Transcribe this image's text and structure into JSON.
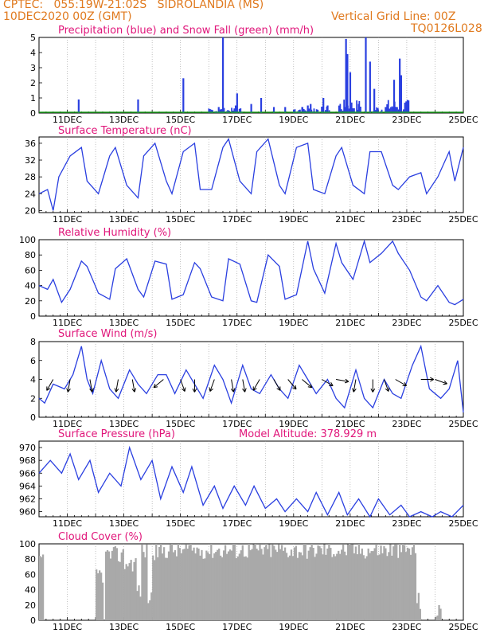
{
  "header": {
    "line1": "CPTEC:   055:19W-21:02S   SIDROLANDIA (MS)",
    "line2": "10DEC2020 00Z (GMT)",
    "grid_note": "Vertical Grid Line: 00Z",
    "code": "TQ0126L028"
  },
  "x_tick_labels": [
    "11DEC",
    "13DEC",
    "15DEC",
    "17DEC",
    "19DEC",
    "21DEC",
    "23DEC",
    "25DEC"
  ],
  "chart_data": [
    {
      "type": "bar",
      "title": "Precipitation (blue) and Snow Fall (green) (mm/h)",
      "ylim": [
        0,
        5
      ],
      "yticks": [
        "0",
        "1",
        "2",
        "3",
        "4",
        "5"
      ],
      "colors": {
        "precip": "#2a3fe0",
        "snow": "#1ea01e"
      },
      "series": [
        {
          "name": "Precipitation",
          "points": [
            [
              1.4,
              0.9
            ],
            [
              3.5,
              0.9
            ],
            [
              5.1,
              2.3
            ],
            [
              6.35,
              0.4
            ],
            [
              6.5,
              5
            ],
            [
              6.95,
              0.5
            ],
            [
              7.0,
              1.3
            ],
            [
              7.5,
              0.6
            ],
            [
              7.85,
              1.0
            ],
            [
              8.3,
              0.4
            ],
            [
              8.7,
              0.4
            ],
            [
              9.3,
              0.4
            ],
            [
              9.5,
              0.5
            ],
            [
              9.6,
              0.6
            ],
            [
              10.05,
              1.0
            ],
            [
              10.2,
              0.5
            ],
            [
              10.85,
              4.9
            ],
            [
              10.9,
              3.9
            ],
            [
              11.0,
              2.7
            ],
            [
              11.3,
              0.6
            ],
            [
              11.55,
              5.0
            ],
            [
              11.7,
              3.4
            ],
            [
              11.85,
              1.6
            ],
            [
              12.25,
              0.4
            ],
            [
              12.55,
              2.2
            ],
            [
              12.75,
              3.6
            ],
            [
              12.8,
              2.5
            ],
            [
              13.05,
              0.7
            ]
          ]
        }
      ]
    },
    {
      "type": "line",
      "title": "Surface Temperature (nC)",
      "ylim": [
        19.5,
        37.5
      ],
      "yticks": [
        "20",
        "24",
        "28",
        "32",
        "36"
      ],
      "color": "#2a3fe0",
      "x": [
        0,
        0.3,
        0.5,
        0.7,
        1.1,
        1.5,
        1.7,
        2.1,
        2.5,
        2.7,
        3.1,
        3.5,
        3.7,
        4.1,
        4.5,
        4.7,
        5.1,
        5.5,
        5.7,
        6.1,
        6.5,
        6.7,
        7.1,
        7.5,
        7.7,
        8.1,
        8.5,
        8.7,
        9.1,
        9.5,
        9.7,
        10.1,
        10.5,
        10.7,
        11.1,
        11.5,
        11.7,
        12.1,
        12.5,
        12.7,
        13.1,
        13.5,
        13.7,
        14.1,
        14.5,
        14.7,
        15.0
      ],
      "y": [
        24,
        25,
        20,
        28,
        33,
        35,
        27,
        24,
        33,
        35,
        26,
        23,
        33,
        36,
        27,
        24,
        34,
        36,
        25,
        25,
        35,
        37,
        27,
        24,
        34,
        37,
        26,
        24,
        35,
        36,
        25,
        24,
        33,
        35,
        26,
        24,
        34,
        34,
        26,
        25,
        28,
        29,
        24,
        28,
        34,
        27,
        35
      ]
    },
    {
      "type": "line",
      "title": "Relative Humidity (%)",
      "ylim": [
        0,
        100
      ],
      "yticks": [
        "0",
        "20",
        "40",
        "60",
        "80",
        "100"
      ],
      "color": "#2a3fe0",
      "x": [
        0,
        0.3,
        0.5,
        0.8,
        1.1,
        1.5,
        1.7,
        2.1,
        2.5,
        2.7,
        3.1,
        3.5,
        3.7,
        4.1,
        4.5,
        4.7,
        5.1,
        5.5,
        5.7,
        6.1,
        6.5,
        6.7,
        7.1,
        7.5,
        7.7,
        8.1,
        8.5,
        8.7,
        9.1,
        9.5,
        9.7,
        10.1,
        10.5,
        10.7,
        11.1,
        11.5,
        11.7,
        12.1,
        12.5,
        12.7,
        13.1,
        13.5,
        13.7,
        14.1,
        14.5,
        14.7,
        15.0
      ],
      "y": [
        40,
        35,
        48,
        18,
        35,
        72,
        65,
        30,
        22,
        62,
        75,
        35,
        25,
        72,
        68,
        22,
        28,
        70,
        62,
        25,
        20,
        75,
        68,
        20,
        18,
        80,
        65,
        22,
        28,
        98,
        62,
        30,
        95,
        70,
        48,
        98,
        70,
        82,
        98,
        82,
        60,
        25,
        20,
        40,
        18,
        15,
        22
      ]
    },
    {
      "type": "line",
      "title": "Surface Wind (m/s)",
      "ylim": [
        0,
        8
      ],
      "yticks": [
        "0",
        "2",
        "4",
        "6",
        "8"
      ],
      "color": "#2a3fe0",
      "x": [
        0,
        0.2,
        0.5,
        0.9,
        1.2,
        1.5,
        1.7,
        1.9,
        2.2,
        2.5,
        2.8,
        3.2,
        3.5,
        3.8,
        4.2,
        4.5,
        4.8,
        5.2,
        5.5,
        5.8,
        6.2,
        6.5,
        6.8,
        7.2,
        7.5,
        7.8,
        8.2,
        8.5,
        8.8,
        9.2,
        9.5,
        9.8,
        10.2,
        10.5,
        10.8,
        11.2,
        11.5,
        11.8,
        12.2,
        12.5,
        12.8,
        13.2,
        13.5,
        13.8,
        14.2,
        14.5,
        14.8,
        15.0
      ],
      "y": [
        2,
        1.5,
        3.5,
        3,
        4.5,
        7.5,
        4,
        2.5,
        6,
        3,
        2,
        5,
        3.5,
        2.5,
        4.5,
        4.5,
        2.5,
        5,
        3.5,
        2,
        5.5,
        4,
        1.5,
        5.5,
        3,
        2.5,
        4.5,
        3,
        2,
        5.5,
        4,
        2.5,
        4,
        2,
        1,
        5,
        2,
        1,
        4,
        2.5,
        2,
        5.5,
        7.5,
        3,
        2,
        3,
        6,
        0.5
      ]
    },
    {
      "type": "line",
      "title": "Surface Pressure (hPa)",
      "annotation": "Model Altitude: 378.929  m",
      "ylim": [
        959.2,
        971
      ],
      "yticks": [
        "960",
        "962",
        "964",
        "966",
        "968",
        "970"
      ],
      "color": "#2a3fe0",
      "x": [
        0,
        0.4,
        0.8,
        1.1,
        1.4,
        1.8,
        2.1,
        2.5,
        2.9,
        3.2,
        3.6,
        4.0,
        4.3,
        4.7,
        5.1,
        5.4,
        5.8,
        6.2,
        6.5,
        6.9,
        7.3,
        7.6,
        8.0,
        8.4,
        8.7,
        9.1,
        9.5,
        9.8,
        10.2,
        10.6,
        10.9,
        11.3,
        11.7,
        12.0,
        12.4,
        12.8,
        13.1,
        13.5,
        13.9,
        14.2,
        14.6,
        15.0
      ],
      "y": [
        966,
        968,
        966,
        969,
        965,
        968,
        963,
        966,
        964,
        970,
        965,
        968,
        962,
        967,
        963,
        967,
        961,
        964,
        960.5,
        964,
        961,
        964,
        960.5,
        962,
        960,
        962,
        960,
        963,
        959.5,
        963,
        959.5,
        962,
        959,
        962,
        959.5,
        961,
        959,
        960,
        958.5,
        960,
        959,
        961
      ]
    },
    {
      "type": "bar",
      "title": "Cloud Cover (%)",
      "ylim": [
        0,
        100
      ],
      "yticks": [
        "0",
        "20",
        "40",
        "60",
        "80",
        "100"
      ],
      "color": "#a9a9a9"
    }
  ]
}
